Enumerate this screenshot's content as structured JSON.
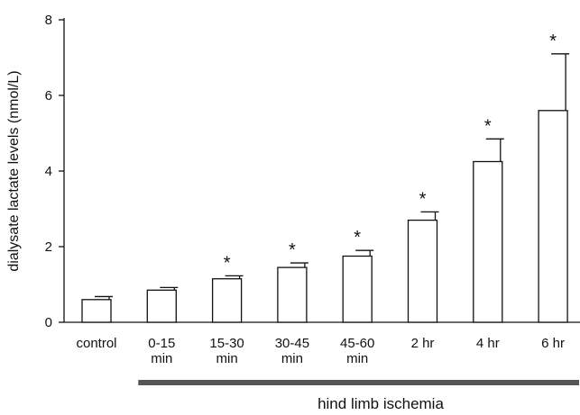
{
  "chart_data": {
    "type": "bar",
    "title": "",
    "xlabel": "",
    "ylabel": "dialysate lactate levels (nmol/L)",
    "ylim": [
      0,
      8
    ],
    "yticks": [
      "0",
      "2",
      "4",
      "6",
      "8"
    ],
    "grid": false,
    "categories": [
      [
        "control"
      ],
      [
        "0-15",
        "min"
      ],
      [
        "15-30",
        "min"
      ],
      [
        "30-45",
        "min"
      ],
      [
        "45-60",
        "min"
      ],
      [
        "2 hr"
      ],
      [
        "4 hr"
      ],
      [
        "6 hr"
      ]
    ],
    "values": [
      0.6,
      0.85,
      1.15,
      1.45,
      1.75,
      2.7,
      4.25,
      5.6
    ],
    "error_plus": [
      0.08,
      0.07,
      0.08,
      0.12,
      0.15,
      0.22,
      0.6,
      1.5
    ],
    "significance_marker": "*",
    "significant": [
      false,
      false,
      true,
      true,
      true,
      true,
      true,
      true
    ],
    "bar_fill": "#ffffff",
    "bar_stroke": "#111111",
    "group_bracket": {
      "label": "hind limb ischemia",
      "from_category": 1,
      "to_category": 7,
      "color": "#555555"
    }
  }
}
